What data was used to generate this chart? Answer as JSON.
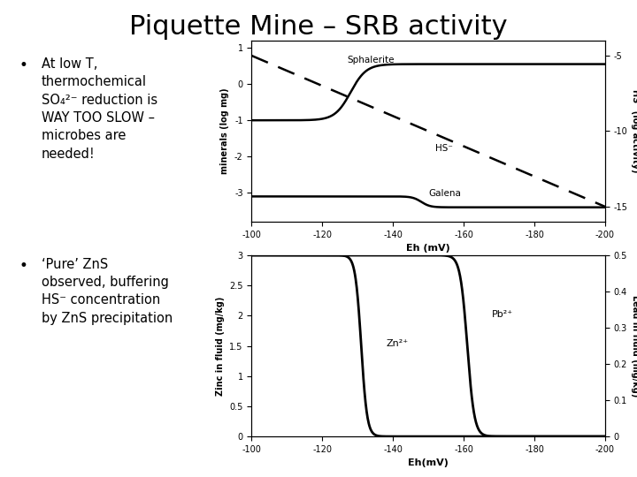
{
  "title": "Piquette Mine – SRB activity",
  "title_fontsize": 22,
  "bg_color": "#ffffff",
  "plot1": {
    "xlabel": "Eh (mV)",
    "ylabel_left": "minerals (log mg)",
    "ylabel_right": "HS⁻ (log activity)",
    "xlim": [
      -100,
      -200
    ],
    "xticks": [
      -100,
      -120,
      -140,
      -160,
      -180,
      -200
    ],
    "ylim_left": [
      -3.8,
      1.2
    ],
    "ylim_right": [
      -16,
      -4
    ],
    "yticks_left": [
      1,
      0,
      -1,
      -2,
      -3
    ],
    "yticks_right": [
      -5,
      -10,
      -15
    ],
    "sphalerite_label": "Sphalerite",
    "galena_label": "Galena",
    "hs_label": "HS⁻"
  },
  "plot2": {
    "xlabel": "Eh(mV)",
    "ylabel_left": "Zinc in fluid (mg/kg)",
    "ylabel_right": "Lead in fluid (mg/kg)",
    "xlim": [
      -100,
      -200
    ],
    "xticks": [
      -100,
      -120,
      -140,
      -160,
      -180,
      -200
    ],
    "ylim_left": [
      0,
      3
    ],
    "ylim_right": [
      0,
      0.5
    ],
    "yticks_left": [
      0,
      0.5,
      1,
      1.5,
      2,
      2.5,
      3
    ],
    "yticks_right": [
      0,
      0.1,
      0.2,
      0.3,
      0.4,
      0.5
    ],
    "zn_label": "Zn²⁺",
    "pb_label": "Pb²⁺"
  }
}
